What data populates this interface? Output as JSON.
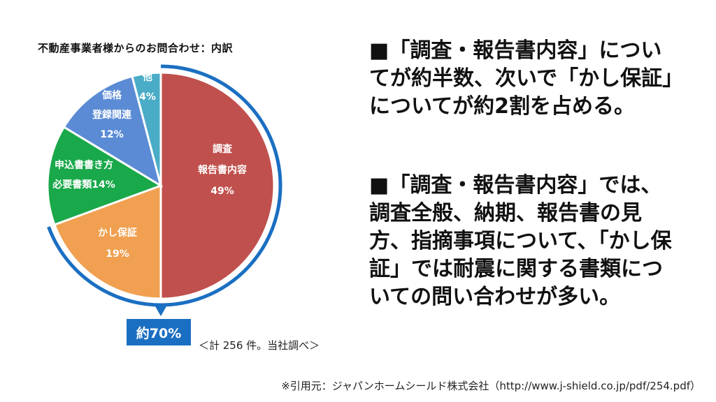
{
  "chart_data": {
    "type": "pie",
    "title": "不動産事業者様からのお問合わせ：内訳",
    "slices": [
      {
        "name": "調査 報告書内容",
        "lines": [
          "調査",
          "報告書内容"
        ],
        "value": 49,
        "value_label": "49%",
        "color": "#c0504d"
      },
      {
        "name": "かし保証",
        "lines": [
          "かし保証"
        ],
        "value": 19,
        "value_label": "19%",
        "color": "#f0a050"
      },
      {
        "name": "申込書書き方 必要書類",
        "lines": [
          "申込書書き方",
          "必要書類14%"
        ],
        "value": 14,
        "value_label": "",
        "color": "#19a84a"
      },
      {
        "name": "価格 登録関連",
        "lines": [
          "価格",
          "登録関連"
        ],
        "value": 12,
        "value_label": "12%",
        "color": "#5b8bd5"
      },
      {
        "name": "他",
        "lines": [
          "他"
        ],
        "value": 4,
        "value_label": "4%",
        "color": "#4aacc6"
      }
    ],
    "highlight": {
      "label": "約70%",
      "color": "#1b6fc2"
    },
    "note": "＜計 256 件。当社調べ＞"
  },
  "text": {
    "paragraph1": "■「調査・報告書内容」についてが約半数、次いで「かし保証」についてが約2割を占める。",
    "paragraph2": "■「調査・報告書内容」では、調査全般、納期、報告書の見方、指摘事項について、「かし保証」では耐震に関する書類についての問い合わせが多い。"
  },
  "source": "※引用元：ジャパンホームシールド株式会社（http://www.j-shield.co.jp/pdf/254.pdf）"
}
